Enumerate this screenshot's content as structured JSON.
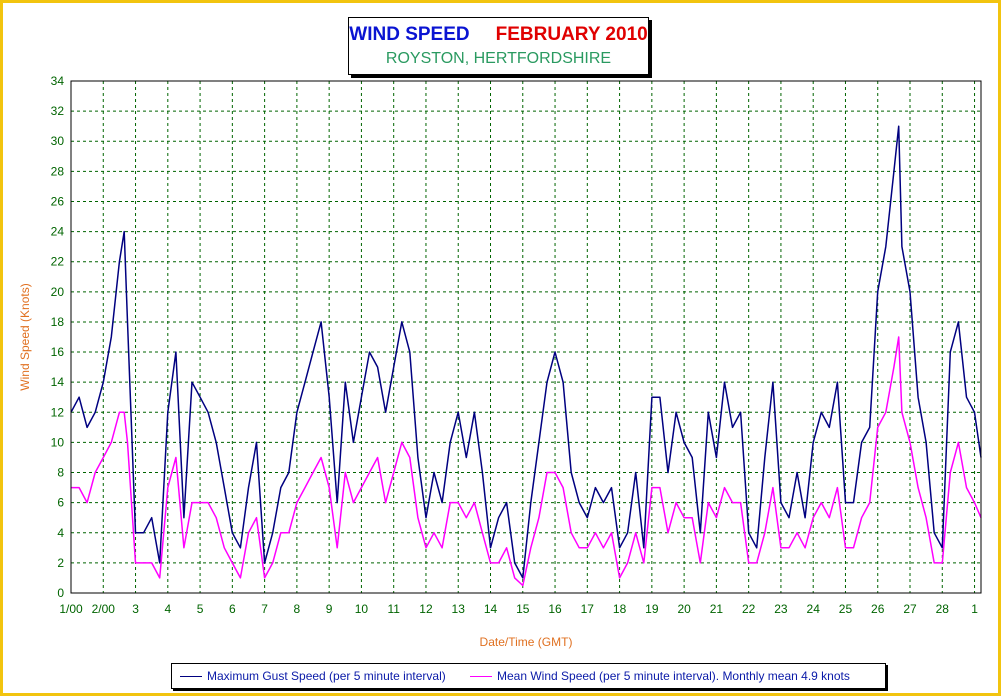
{
  "title": "WIND SPEED",
  "title_month": "FEBRUARY 2010",
  "subtitle": "ROYSTON, HERTFORDSHIRE",
  "colors": {
    "frame": "#f2c40f",
    "gust": "#000080",
    "mean": "#ff00ff",
    "axis_text": "#e07020",
    "tick_text": "#006400",
    "grid": "#006400"
  },
  "chart_data": {
    "type": "line",
    "title": "WIND SPEED   FEBRUARY 2010",
    "subtitle": "ROYSTON, HERTFORDSHIRE",
    "xlabel": "Date/Time (GMT)",
    "ylabel": "Wind Speed (Knots)",
    "ylim": [
      0,
      34
    ],
    "xlim": [
      1,
      29.2
    ],
    "grid": true,
    "legend_placement": "bottom",
    "x_ticks": [
      "1/00",
      "2/00",
      "3",
      "4",
      "5",
      "6",
      "7",
      "8",
      "9",
      "10",
      "11",
      "12",
      "13",
      "14",
      "15",
      "16",
      "17",
      "18",
      "19",
      "20",
      "21",
      "22",
      "23",
      "24",
      "25",
      "26",
      "27",
      "28",
      "1"
    ],
    "y_ticks": [
      0,
      2,
      4,
      6,
      8,
      10,
      12,
      14,
      16,
      18,
      20,
      22,
      24,
      26,
      28,
      30,
      32,
      34
    ],
    "x": [
      1.0,
      1.25,
      1.5,
      1.75,
      2.0,
      2.25,
      2.5,
      2.65,
      2.75,
      3.0,
      3.25,
      3.5,
      3.75,
      4.0,
      4.25,
      4.5,
      4.75,
      5.0,
      5.25,
      5.5,
      5.75,
      6.0,
      6.25,
      6.5,
      6.75,
      7.0,
      7.25,
      7.5,
      7.75,
      8.0,
      8.25,
      8.5,
      8.75,
      9.0,
      9.25,
      9.5,
      9.75,
      10.0,
      10.25,
      10.5,
      10.75,
      11.0,
      11.25,
      11.5,
      11.75,
      12.0,
      12.25,
      12.5,
      12.75,
      13.0,
      13.25,
      13.5,
      13.75,
      14.0,
      14.25,
      14.5,
      14.75,
      15.0,
      15.25,
      15.5,
      15.75,
      16.0,
      16.25,
      16.5,
      16.75,
      17.0,
      17.25,
      17.5,
      17.75,
      18.0,
      18.25,
      18.5,
      18.75,
      19.0,
      19.25,
      19.5,
      19.75,
      20.0,
      20.25,
      20.5,
      20.75,
      21.0,
      21.25,
      21.5,
      21.75,
      22.0,
      22.25,
      22.5,
      22.75,
      23.0,
      23.25,
      23.5,
      23.75,
      24.0,
      24.25,
      24.5,
      24.75,
      25.0,
      25.25,
      25.5,
      25.75,
      26.0,
      26.25,
      26.5,
      26.65,
      26.75,
      27.0,
      27.25,
      27.5,
      27.75,
      28.0,
      28.25,
      28.5,
      28.75,
      29.0,
      29.2
    ],
    "series": [
      {
        "name": "Maximum Gust Speed (per 5 minute interval)",
        "values": [
          12,
          13,
          11,
          12,
          14,
          17,
          22,
          24,
          18,
          4,
          4,
          5,
          2,
          12,
          16,
          5,
          14,
          13,
          12,
          10,
          7,
          4,
          3,
          7,
          10,
          2,
          4,
          7,
          8,
          12,
          14,
          16,
          18,
          13,
          6,
          14,
          10,
          13,
          16,
          15,
          12,
          15,
          18,
          16,
          9,
          5,
          8,
          6,
          10,
          12,
          9,
          12,
          8,
          3,
          5,
          6,
          2,
          1,
          6,
          10,
          14,
          16,
          14,
          8,
          6,
          5,
          7,
          6,
          7,
          3,
          4,
          8,
          3,
          13,
          13,
          8,
          12,
          10,
          9,
          4,
          12,
          9,
          14,
          11,
          12,
          4,
          3,
          9,
          14,
          6,
          5,
          8,
          5,
          10,
          12,
          11,
          14,
          6,
          6,
          10,
          11,
          20,
          23,
          28,
          31,
          23,
          20,
          13,
          10,
          4,
          3,
          16,
          18,
          13,
          12,
          9
        ],
        "color": "#000080"
      },
      {
        "name": "Mean Wind Speed (per 5 minute interval). Monthly mean 4.9 knots",
        "values": [
          7,
          7,
          6,
          8,
          9,
          10,
          12,
          12,
          10,
          2,
          2,
          2,
          1,
          7,
          9,
          3,
          6,
          6,
          6,
          5,
          3,
          2,
          1,
          4,
          5,
          1,
          2,
          4,
          4,
          6,
          7,
          8,
          9,
          7,
          3,
          8,
          6,
          7,
          8,
          9,
          6,
          8,
          10,
          9,
          5,
          3,
          4,
          3,
          6,
          6,
          5,
          6,
          4,
          2,
          2,
          3,
          1,
          0.5,
          3,
          5,
          8,
          8,
          7,
          4,
          3,
          3,
          4,
          3,
          4,
          1,
          2,
          4,
          2,
          7,
          7,
          4,
          6,
          5,
          5,
          2,
          6,
          5,
          7,
          6,
          6,
          2,
          2,
          4,
          7,
          3,
          3,
          4,
          3,
          5,
          6,
          5,
          7,
          3,
          3,
          5,
          6,
          11,
          12,
          15,
          17,
          12,
          10,
          7,
          5,
          2,
          2,
          8,
          10,
          7,
          6,
          5
        ],
        "color": "#ff00ff"
      }
    ]
  }
}
